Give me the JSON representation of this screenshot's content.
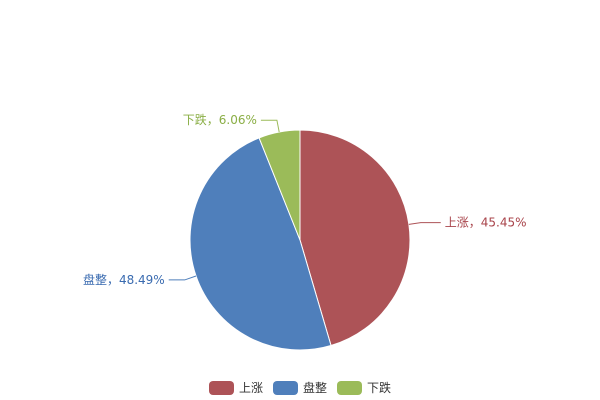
{
  "chart_data": {
    "type": "pie",
    "title": "",
    "categories": [
      "上涨",
      "盘整",
      "下跌"
    ],
    "values": [
      45.45,
      48.49,
      6.06
    ],
    "labels": [
      "上涨，45.45%",
      "盘整，48.49%",
      "下跌，6.06%"
    ],
    "colors": [
      "#AD5357",
      "#4F7FBB",
      "#9BBB59"
    ],
    "start_angle": "top, clockwise",
    "legend": {
      "position": "bottom",
      "items": [
        "上涨",
        "盘整",
        "下跌"
      ]
    }
  }
}
